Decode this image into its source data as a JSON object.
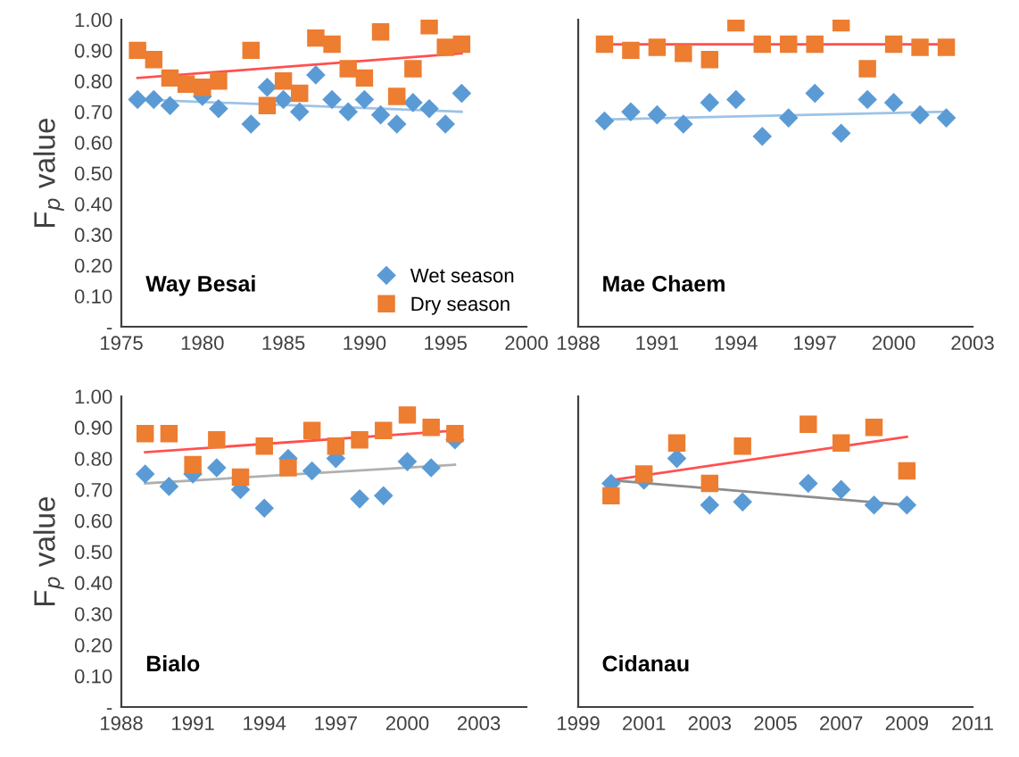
{
  "chart_data": [
    {
      "type": "scatter",
      "title": "Way Besai",
      "ylabel": "F$_{p}$ value",
      "xlim": [
        1975,
        2000
      ],
      "xticks": [
        1975,
        1980,
        1985,
        1990,
        1995,
        2000
      ],
      "ylim": [
        0,
        1.0
      ],
      "yticks": [
        {
          "value": 0,
          "label": "-"
        },
        {
          "value": 0.1,
          "label": "0.10"
        },
        {
          "value": 0.2,
          "label": "0.20"
        },
        {
          "value": 0.3,
          "label": "0.30"
        },
        {
          "value": 0.4,
          "label": "0.40"
        },
        {
          "value": 0.5,
          "label": "0.50"
        },
        {
          "value": 0.6,
          "label": "0.60"
        },
        {
          "value": 0.7,
          "label": "0.70"
        },
        {
          "value": 0.8,
          "label": "0.80"
        },
        {
          "value": 0.9,
          "label": "0.90"
        },
        {
          "value": 1.0,
          "label": "1.00"
        }
      ],
      "grid": false,
      "legend": "bottom right",
      "series": [
        {
          "name": "Wet season",
          "marker": "diamond",
          "color": "#5b9bd5",
          "x": [
            1976,
            1977,
            1978,
            1980,
            1981,
            1983,
            1984,
            1985,
            1986,
            1987,
            1988,
            1989,
            1990,
            1991,
            1992,
            1993,
            1994,
            1995,
            1996
          ],
          "values": [
            0.74,
            0.74,
            0.72,
            0.75,
            0.71,
            0.66,
            0.78,
            0.74,
            0.7,
            0.82,
            0.74,
            0.7,
            0.74,
            0.69,
            0.66,
            0.73,
            0.71,
            0.66,
            0.76
          ]
        },
        {
          "name": "Dry season",
          "marker": "square",
          "color": "#ed7d31",
          "x": [
            1976,
            1977,
            1978,
            1979,
            1980,
            1981,
            1983,
            1984,
            1985,
            1986,
            1987,
            1988,
            1989,
            1990,
            1991,
            1992,
            1993,
            1994,
            1995,
            1996
          ],
          "values": [
            0.9,
            0.87,
            0.81,
            0.79,
            0.78,
            0.8,
            0.9,
            0.72,
            0.8,
            0.76,
            0.94,
            0.92,
            0.84,
            0.81,
            0.96,
            0.75,
            0.84,
            0.98,
            0.91,
            0.92
          ]
        },
        {
          "type": "line",
          "color": "#9dc3e6",
          "x": [
            1976,
            1996
          ],
          "values": [
            0.74,
            0.7
          ]
        },
        {
          "type": "line",
          "color": "#ff5050",
          "x": [
            1976,
            1996
          ],
          "values": [
            0.81,
            0.89
          ]
        }
      ]
    },
    {
      "type": "scatter",
      "title": "Mae Chaem",
      "tick_labels": "x",
      "xlim": [
        1988,
        2003
      ],
      "xticks": [
        1988,
        1991,
        1994,
        1997,
        2000,
        2003
      ],
      "ylim": [
        0,
        1.0
      ],
      "grid": false,
      "series": [
        {
          "marker": "diamond",
          "color": "#5b9bd5",
          "x": [
            1989,
            1990,
            1991,
            1992,
            1993,
            1994,
            1995,
            1996,
            1997,
            1998,
            1999,
            2000,
            2001,
            2002
          ],
          "values": [
            0.67,
            0.7,
            0.69,
            0.66,
            0.73,
            0.74,
            0.62,
            0.68,
            0.76,
            0.63,
            0.74,
            0.73,
            0.69,
            0.68
          ]
        },
        {
          "marker": "square",
          "color": "#ed7d31",
          "x": [
            1989,
            1990,
            1991,
            1992,
            1993,
            1994,
            1995,
            1996,
            1997,
            1998,
            1999,
            2000,
            2001,
            2002
          ],
          "values": [
            0.92,
            0.9,
            0.91,
            0.89,
            0.87,
            0.99,
            0.92,
            0.92,
            0.92,
            0.99,
            0.84,
            0.92,
            0.91,
            0.91
          ]
        },
        {
          "type": "line",
          "color": "#9dc3e6",
          "x": [
            1989,
            2002
          ],
          "values": [
            0.675,
            0.7
          ]
        },
        {
          "type": "line",
          "color": "#ff5050",
          "x": [
            1989,
            2002
          ],
          "values": [
            0.92,
            0.92
          ]
        }
      ]
    },
    {
      "type": "scatter",
      "title": "Bialo",
      "ylabel": "F$_{p}$ value",
      "xlim": [
        1988,
        2005
      ],
      "xticks": [
        1988,
        1991,
        1994,
        1997,
        2000,
        2003
      ],
      "ylim": [
        0,
        1.0
      ],
      "yticks": [
        {
          "value": 0,
          "label": "-"
        },
        {
          "value": 0.1,
          "label": "0.10"
        },
        {
          "value": 0.2,
          "label": "0.20"
        },
        {
          "value": 0.3,
          "label": "0.30"
        },
        {
          "value": 0.4,
          "label": "0.40"
        },
        {
          "value": 0.5,
          "label": "0.50"
        },
        {
          "value": 0.6,
          "label": "0.60"
        },
        {
          "value": 0.7,
          "label": "0.70"
        },
        {
          "value": 0.8,
          "label": "0.80"
        },
        {
          "value": 0.9,
          "label": "0.90"
        },
        {
          "value": 1.0,
          "label": "1.00"
        }
      ],
      "grid": false,
      "series": [
        {
          "marker": "diamond",
          "color": "#5b9bd5",
          "x": [
            1989,
            1990,
            1991,
            1992,
            1993,
            1994,
            1995,
            1996,
            1997,
            1998,
            1999,
            2000,
            2001,
            2002
          ],
          "values": [
            0.75,
            0.71,
            0.75,
            0.77,
            0.7,
            0.64,
            0.8,
            0.76,
            0.8,
            0.67,
            0.68,
            0.79,
            0.77,
            0.86
          ]
        },
        {
          "marker": "square",
          "color": "#ed7d31",
          "x": [
            1989,
            1990,
            1991,
            1992,
            1993,
            1994,
            1995,
            1996,
            1997,
            1998,
            1999,
            2000,
            2001,
            2002
          ],
          "values": [
            0.88,
            0.88,
            0.78,
            0.86,
            0.74,
            0.84,
            0.77,
            0.89,
            0.84,
            0.86,
            0.89,
            0.94,
            0.9,
            0.88
          ]
        },
        {
          "type": "line",
          "color": "#b0b0b0",
          "x": [
            1989,
            2002
          ],
          "values": [
            0.72,
            0.78
          ]
        },
        {
          "type": "line",
          "color": "#ff5050",
          "x": [
            1989,
            2002
          ],
          "values": [
            0.82,
            0.89
          ]
        }
      ]
    },
    {
      "type": "scatter",
      "title": "Cidanau",
      "tick_labels": "x",
      "xlim": [
        1999,
        2011
      ],
      "xticks": [
        1999,
        2001,
        2003,
        2005,
        2007,
        2009,
        2011
      ],
      "ylim": [
        0,
        1.0
      ],
      "grid": false,
      "series": [
        {
          "marker": "diamond",
          "color": "#5b9bd5",
          "x": [
            2000,
            2001,
            2002,
            2003,
            2004,
            2006,
            2007,
            2008,
            2009
          ],
          "values": [
            0.72,
            0.73,
            0.8,
            0.65,
            0.66,
            0.72,
            0.7,
            0.65,
            0.65
          ]
        },
        {
          "marker": "square",
          "color": "#ed7d31",
          "x": [
            2000,
            2001,
            2002,
            2003,
            2004,
            2006,
            2007,
            2008,
            2009
          ],
          "values": [
            0.68,
            0.75,
            0.85,
            0.72,
            0.84,
            0.91,
            0.85,
            0.9,
            0.76
          ]
        },
        {
          "type": "line",
          "color": "#8c8c8c",
          "x": [
            2000,
            2009
          ],
          "values": [
            0.73,
            0.65
          ]
        },
        {
          "type": "line",
          "color": "#ff5050",
          "x": [
            2000,
            2009
          ],
          "values": [
            0.73,
            0.87
          ]
        }
      ]
    }
  ]
}
